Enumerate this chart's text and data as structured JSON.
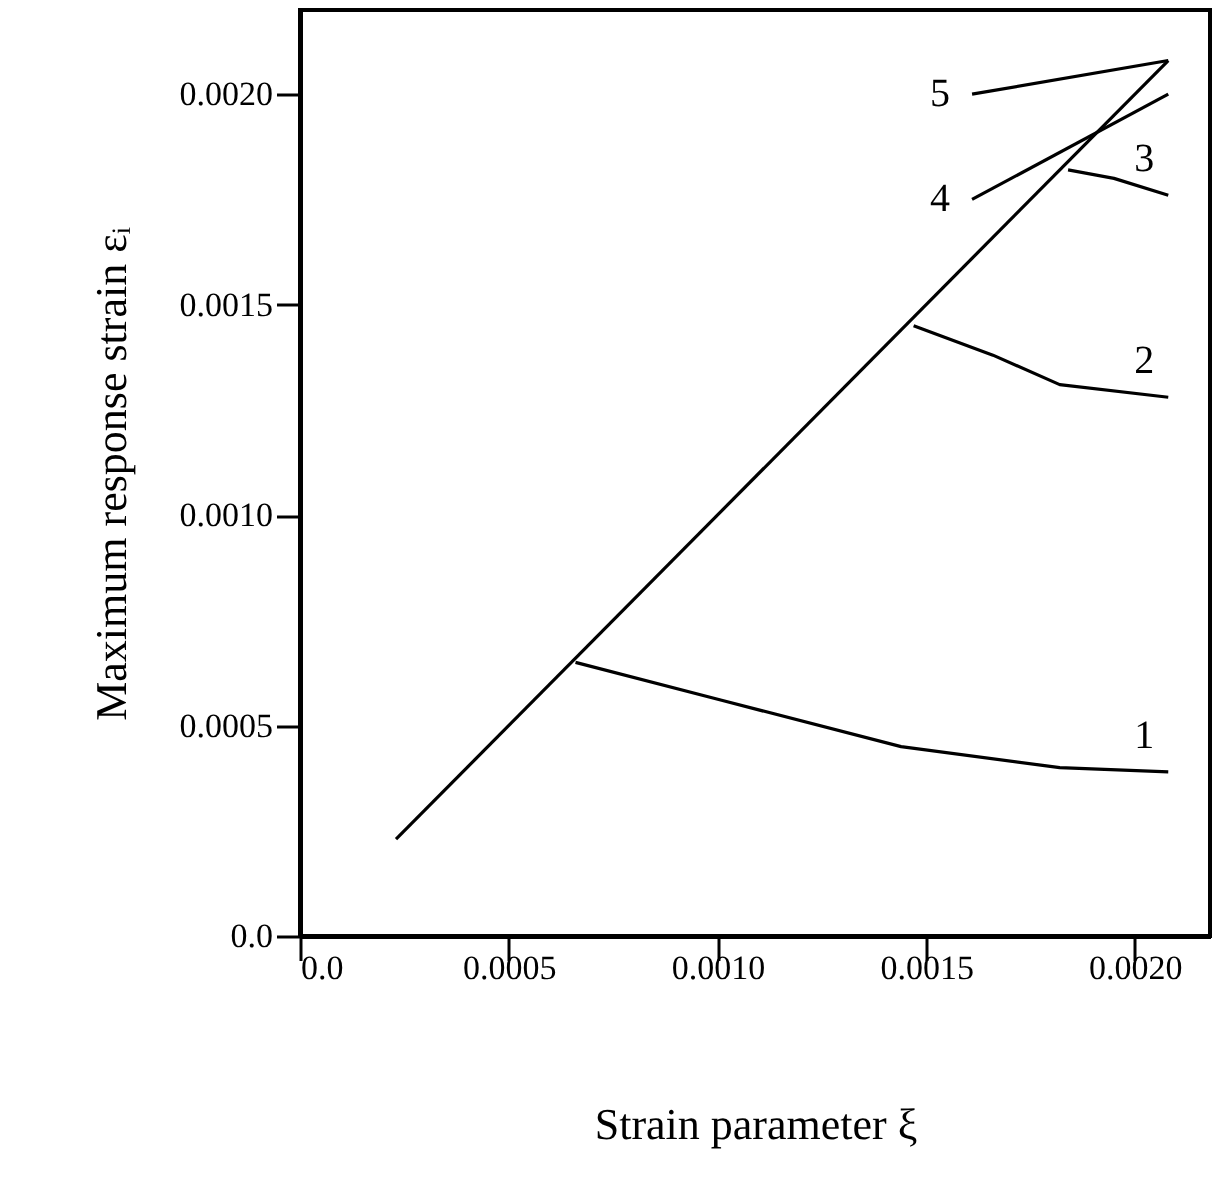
{
  "chart_data": {
    "type": "line",
    "xlabel": "Strain parameter   ξ",
    "ylabel": "Maximum response strain εᵢ",
    "xlim": [
      0,
      0.00218
    ],
    "ylim": [
      0,
      0.0022
    ],
    "xticks": [
      {
        "value": 0,
        "label": "0.0"
      },
      0.0005,
      {
        "value": 0.001,
        "label": "0.0010"
      },
      0.0015,
      {
        "value": 0.002,
        "label": "0.0020"
      }
    ],
    "yticks": [
      {
        "value": 0,
        "label": "0.0"
      },
      0.0005,
      {
        "value": 0.001,
        "label": "0.0010"
      },
      0.0015,
      {
        "value": 0.002,
        "label": "0.0020"
      }
    ],
    "grid": false,
    "marker": "none",
    "line_style": "solid",
    "series": [
      {
        "color": "#000000",
        "x": [
          0.00023,
          0.00208
        ],
        "values": [
          0.00023,
          0.00208
        ]
      },
      {
        "name": "1",
        "color": "#000000",
        "x": [
          0.00066,
          0.00101,
          0.00144,
          0.00182,
          0.00208
        ],
        "values": [
          0.00065,
          0.00056,
          0.00045,
          0.0004,
          0.00039
        ]
      },
      {
        "name": "2",
        "color": "#000000",
        "x": [
          0.00147,
          0.00166,
          0.00182,
          0.00208
        ],
        "values": [
          0.00145,
          0.00138,
          0.00131,
          0.00128
        ]
      },
      {
        "name": "3",
        "color": "#000000",
        "x": [
          0.00184,
          0.00195,
          0.00208
        ],
        "values": [
          0.00182,
          0.0018,
          0.00176
        ]
      },
      {
        "name": "4",
        "color": "#000000",
        "x": [
          0.00161,
          0.00208
        ],
        "values": [
          0.00175,
          0.002
        ]
      },
      {
        "name": "5",
        "color": "#000000",
        "x": [
          0.00161,
          0.00208
        ],
        "values": [
          0.002,
          0.00208
        ]
      }
    ]
  }
}
